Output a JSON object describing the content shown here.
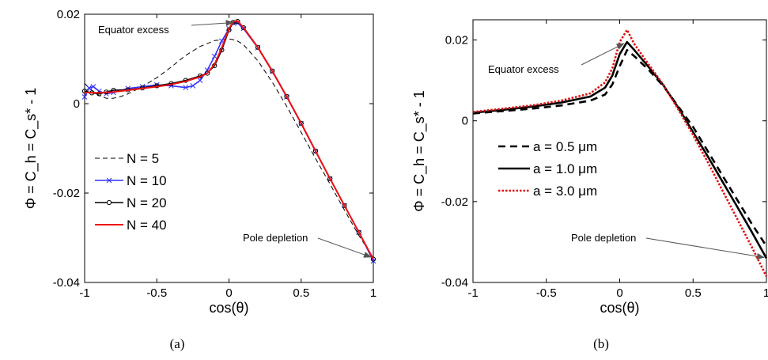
{
  "chart_data": [
    {
      "type": "line",
      "panel": "a",
      "caption": "(a)",
      "xlabel": "cos(θ)",
      "ylabel": "Φ = C_h = C_s* - 1",
      "xlim": [
        -1,
        1
      ],
      "ylim": [
        -0.04,
        0.02
      ],
      "xticks": [
        -1,
        -0.5,
        0,
        0.5,
        1
      ],
      "xtick_labels": [
        "-1",
        "-0.5",
        "0",
        "0.5",
        "1"
      ],
      "yticks": [
        -0.04,
        -0.02,
        0,
        0.02
      ],
      "ytick_labels": [
        "-0.04",
        "-0.02",
        "0",
        "0.02"
      ],
      "grid": false,
      "legend_position": "center-left",
      "annotations": [
        {
          "text": "Equator excess",
          "x": 0.05,
          "y": 0.0185
        },
        {
          "text": "Pole depletion",
          "x": 1.0,
          "y": -0.0345
        }
      ],
      "series": [
        {
          "name": "N = 5",
          "color": "#000000",
          "style": "dashed",
          "marker": "none",
          "x": [
            -1.0,
            -0.95,
            -0.9,
            -0.85,
            -0.8,
            -0.75,
            -0.7,
            -0.6,
            -0.5,
            -0.4,
            -0.3,
            -0.2,
            -0.1,
            0.0,
            0.05,
            0.1,
            0.2,
            0.3,
            0.4,
            0.5,
            0.6,
            0.7,
            0.8,
            0.9,
            1.0
          ],
          "y": [
            0.0045,
            0.003,
            0.0018,
            0.0012,
            0.0012,
            0.0016,
            0.0022,
            0.0038,
            0.0058,
            0.0082,
            0.0108,
            0.0128,
            0.0141,
            0.0145,
            0.0142,
            0.0132,
            0.0096,
            0.0048,
            -0.0006,
            -0.0064,
            -0.0123,
            -0.018,
            -0.0238,
            -0.0295,
            -0.0345
          ]
        },
        {
          "name": "N = 10",
          "color": "#3333ff",
          "style": "solid",
          "marker": "x",
          "x": [
            -1.0,
            -0.97,
            -0.94,
            -0.9,
            -0.85,
            -0.8,
            -0.7,
            -0.6,
            -0.5,
            -0.4,
            -0.3,
            -0.25,
            -0.2,
            -0.15,
            -0.1,
            -0.05,
            0.0,
            0.03,
            0.06,
            0.1,
            0.2,
            0.3,
            0.4,
            0.5,
            0.6,
            0.7,
            0.8,
            0.9,
            1.0
          ],
          "y": [
            0.0015,
            0.0035,
            0.0038,
            0.0028,
            0.0022,
            0.0025,
            0.0034,
            0.0038,
            0.0042,
            0.004,
            0.0036,
            0.004,
            0.0052,
            0.0075,
            0.0106,
            0.014,
            0.0168,
            0.018,
            0.018,
            0.0168,
            0.0125,
            0.0072,
            0.0015,
            -0.0045,
            -0.0107,
            -0.0168,
            -0.0228,
            -0.0288,
            -0.0352
          ]
        },
        {
          "name": "N = 20",
          "color": "#000000",
          "style": "solid",
          "marker": "o",
          "x": [
            -1.0,
            -0.95,
            -0.9,
            -0.85,
            -0.8,
            -0.7,
            -0.6,
            -0.5,
            -0.4,
            -0.3,
            -0.2,
            -0.15,
            -0.1,
            -0.05,
            0.0,
            0.03,
            0.06,
            0.1,
            0.2,
            0.3,
            0.4,
            0.5,
            0.6,
            0.7,
            0.8,
            0.9,
            1.0
          ],
          "y": [
            0.0028,
            0.0024,
            0.0022,
            0.0026,
            0.003,
            0.0031,
            0.0035,
            0.004,
            0.0045,
            0.0052,
            0.0062,
            0.0068,
            0.0085,
            0.012,
            0.0165,
            0.0182,
            0.0184,
            0.017,
            0.0126,
            0.0073,
            0.0016,
            -0.0044,
            -0.0106,
            -0.0168,
            -0.0228,
            -0.0288,
            -0.0348
          ]
        },
        {
          "name": "N = 40",
          "color": "#ee1111",
          "style": "solid",
          "marker": "none",
          "x": [
            -1.0,
            -0.9,
            -0.8,
            -0.7,
            -0.6,
            -0.5,
            -0.4,
            -0.3,
            -0.2,
            -0.15,
            -0.1,
            -0.05,
            0.0,
            0.03,
            0.06,
            0.1,
            0.2,
            0.3,
            0.4,
            0.5,
            0.6,
            0.7,
            0.8,
            0.9,
            1.0
          ],
          "y": [
            0.0025,
            0.0024,
            0.0026,
            0.003,
            0.0034,
            0.0038,
            0.0043,
            0.005,
            0.006,
            0.0068,
            0.0088,
            0.0125,
            0.0168,
            0.0183,
            0.0185,
            0.017,
            0.0126,
            0.0073,
            0.0016,
            -0.0044,
            -0.0106,
            -0.0168,
            -0.0228,
            -0.0288,
            -0.0348
          ]
        }
      ]
    },
    {
      "type": "line",
      "panel": "b",
      "caption": "(b)",
      "xlabel": "cos(θ)",
      "ylabel": "Φ = C_h = C_s* - 1",
      "xlim": [
        -1,
        1
      ],
      "ylim": [
        -0.04,
        0.025
      ],
      "xticks": [
        -1,
        -0.5,
        0,
        0.5,
        1
      ],
      "xtick_labels": [
        "-1",
        "-0.5",
        "0",
        "0.5",
        "1"
      ],
      "yticks": [
        -0.04,
        -0.02,
        0,
        0.02
      ],
      "ytick_labels": [
        "-0.04",
        "-0.02",
        "0",
        "0.02"
      ],
      "grid": false,
      "legend_position": "center",
      "annotations": [
        {
          "text": "Equator excess",
          "x": 0.05,
          "y": 0.0195
        },
        {
          "text": "Pole depletion",
          "x": 1.0,
          "y": -0.034
        }
      ],
      "series": [
        {
          "name": "a = 0.5 μm",
          "color": "#000000",
          "style": "dashed",
          "x": [
            -1.0,
            -0.8,
            -0.6,
            -0.4,
            -0.2,
            -0.1,
            -0.05,
            0.0,
            0.05,
            0.1,
            0.2,
            0.3,
            0.4,
            0.5,
            0.6,
            0.7,
            0.8,
            0.9,
            1.0
          ],
          "y": [
            0.0018,
            0.0024,
            0.003,
            0.0038,
            0.005,
            0.0065,
            0.009,
            0.0135,
            0.0175,
            0.016,
            0.0125,
            0.0085,
            0.0035,
            -0.0015,
            -0.0075,
            -0.0135,
            -0.0195,
            -0.0255,
            -0.031
          ]
        },
        {
          "name": "a = 1.0 μm",
          "color": "#000000",
          "style": "solid",
          "x": [
            -1.0,
            -0.8,
            -0.6,
            -0.4,
            -0.2,
            -0.1,
            -0.05,
            0.0,
            0.05,
            0.1,
            0.2,
            0.3,
            0.4,
            0.5,
            0.6,
            0.7,
            0.8,
            0.9,
            1.0
          ],
          "y": [
            0.002,
            0.0027,
            0.0035,
            0.0045,
            0.006,
            0.0082,
            0.0112,
            0.0165,
            0.0195,
            0.0175,
            0.0132,
            0.0087,
            0.0032,
            -0.0028,
            -0.0088,
            -0.015,
            -0.0212,
            -0.0275,
            -0.034
          ]
        },
        {
          "name": "a  = 3.0 μm",
          "color": "#dd1111",
          "style": "dotted",
          "x": [
            -1.0,
            -0.8,
            -0.6,
            -0.4,
            -0.2,
            -0.1,
            -0.05,
            0.0,
            0.05,
            0.1,
            0.2,
            0.3,
            0.4,
            0.5,
            0.6,
            0.7,
            0.8,
            0.9,
            1.0
          ],
          "y": [
            0.0022,
            0.003,
            0.0038,
            0.005,
            0.0068,
            0.0095,
            0.013,
            0.0195,
            0.0225,
            0.019,
            0.0138,
            0.0088,
            0.0028,
            -0.0035,
            -0.0102,
            -0.0172,
            -0.0242,
            -0.0312,
            -0.0385
          ]
        }
      ]
    }
  ]
}
